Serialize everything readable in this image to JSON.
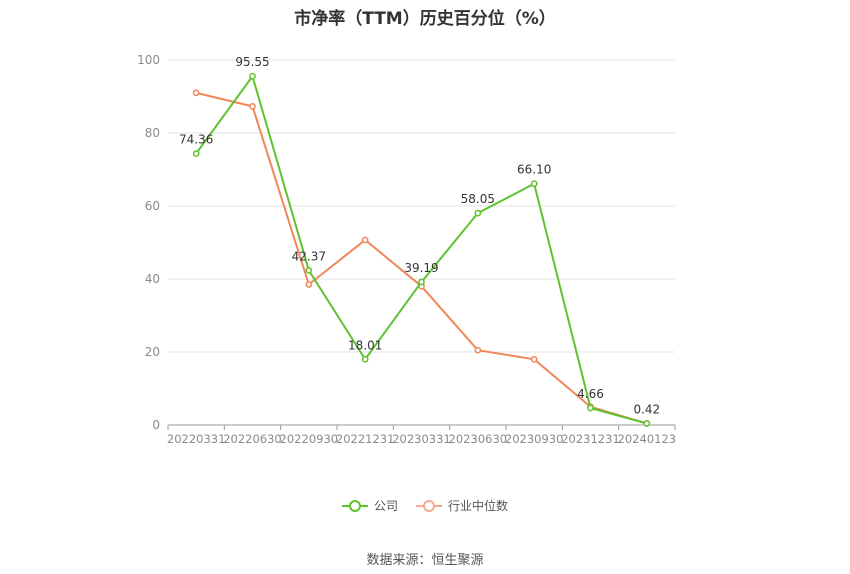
{
  "chart_data": {
    "type": "line",
    "title": "市净率（TTM）历史百分位（%）",
    "categories": [
      "20220331",
      "20220630",
      "20220930",
      "20221231",
      "20230331",
      "20230630",
      "20230930",
      "20231231",
      "20240123"
    ],
    "series": [
      {
        "name": "公司",
        "values": [
          74.36,
          95.55,
          42.37,
          18.01,
          39.19,
          58.05,
          66.1,
          4.66,
          0.42
        ],
        "color": "#5ec22f",
        "labels": [
          "74.36",
          "95.55",
          "42.37",
          "18.01",
          "39.19",
          "58.05",
          "66.10",
          "4.66",
          "0.42"
        ]
      },
      {
        "name": "行业中位数",
        "values": [
          91.0,
          87.3,
          38.5,
          50.7,
          38.0,
          20.5,
          18.0,
          5.0,
          0.42
        ],
        "color": "#f0875a"
      }
    ],
    "ylim": [
      0,
      100
    ],
    "yticks": [
      0,
      20,
      40,
      60,
      80,
      100
    ],
    "xlabel": "",
    "ylabel": "",
    "grid": true,
    "legend": "bottom-center"
  },
  "footer": {
    "source": "数据来源：恒生聚源"
  }
}
